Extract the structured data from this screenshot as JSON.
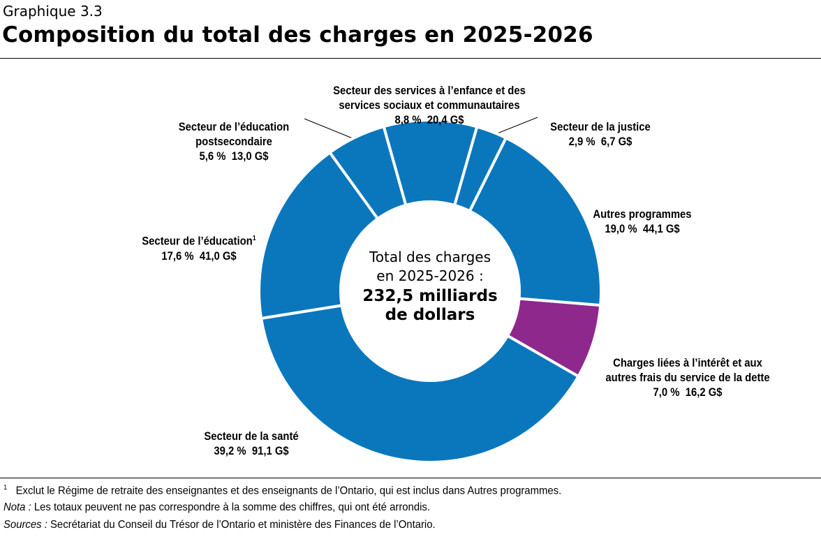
{
  "header": {
    "figure_number": "Graphique 3.3",
    "title": "Composition du total des charges en 2025-2026"
  },
  "chart_data": {
    "type": "pie",
    "donut": true,
    "title": "Composition du total des charges en 2025-2026",
    "center_text": {
      "line1": "Total des charges",
      "line2": "en 2025-2026 :",
      "bold1": "232,5 milliards",
      "bold2": "de dollars"
    },
    "unit": "G$",
    "slices": [
      {
        "name": "Charges liées à l’intérêt et aux\nautres frais du service de la dette",
        "percent": 7.0,
        "value": 16.2,
        "percent_label": "7,0 %",
        "value_label": "16,2 G$",
        "color": "#8e288c"
      },
      {
        "name": "Secteur de la santé",
        "percent": 39.2,
        "value": 91.1,
        "percent_label": "39,2 %",
        "value_label": "91,1 G$",
        "color": "#0a77bd"
      },
      {
        "name": "Secteur de l’éducation",
        "footnote_ref": "1",
        "percent": 17.6,
        "value": 41.0,
        "percent_label": "17,6 %",
        "value_label": "41,0 G$",
        "color": "#0a77bd"
      },
      {
        "name": "Secteur de l’éducation\npostsecondaire",
        "percent": 5.6,
        "value": 13.0,
        "percent_label": "5,6 %",
        "value_label": "13,0 G$",
        "color": "#0a77bd"
      },
      {
        "name": "Secteur des services à l’enfance et des\nservices sociaux et communautaires",
        "percent": 8.8,
        "value": 20.4,
        "percent_label": "8,8 %",
        "value_label": "20,4 G$",
        "color": "#0a77bd"
      },
      {
        "name": "Secteur de la justice",
        "percent": 2.9,
        "value": 6.7,
        "percent_label": "2,9 %",
        "value_label": "6,7 G$",
        "color": "#0a77bd"
      },
      {
        "name": "Autres programmes",
        "percent": 19.0,
        "value": 44.1,
        "percent_label": "19,0 %",
        "value_label": "44,1 G$",
        "color": "#0a77bd"
      }
    ]
  },
  "footnotes": {
    "note1_marker": "1",
    "note1": "Exclut le Régime de retraite des enseignantes et des enseignants de l’Ontario, qui est inclus dans Autres programmes.",
    "nota_label": "Nota :",
    "nota": " Les totaux peuvent ne pas correspondre à la somme des chiffres, qui ont été arrondis.",
    "sources_label": "Sources :",
    "sources": " Secrétariat du Conseil du Trésor de l’Ontario et ministère des Finances de l’Ontario."
  }
}
